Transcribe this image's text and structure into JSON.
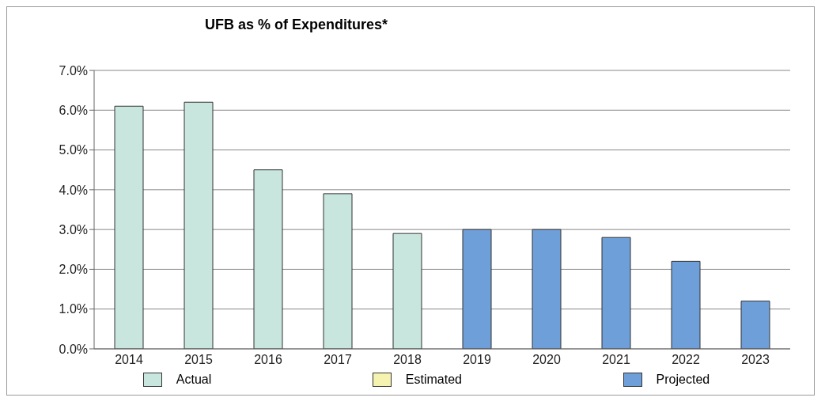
{
  "chart_data": {
    "type": "bar",
    "title": "UFB as % of Expenditures*",
    "categories": [
      "2014",
      "2015",
      "2016",
      "2017",
      "2018",
      "2019",
      "2020",
      "2021",
      "2022",
      "2023"
    ],
    "series": [
      {
        "name": "Actual",
        "color": "#c8e6de",
        "values": [
          6.1,
          6.2,
          4.5,
          3.9,
          2.9,
          null,
          null,
          null,
          null,
          null
        ]
      },
      {
        "name": "Estimated",
        "color": "#f6f3b0",
        "values": [
          null,
          null,
          null,
          null,
          null,
          null,
          null,
          null,
          null,
          null
        ]
      },
      {
        "name": "Projected",
        "color": "#6f9fd8",
        "values": [
          null,
          null,
          null,
          null,
          null,
          3.0,
          3.0,
          2.8,
          2.2,
          1.2
        ]
      }
    ],
    "stacked": true,
    "ylim": [
      0,
      7
    ],
    "yticks": [
      {
        "value": 0,
        "label": "0.0%"
      },
      {
        "value": 1,
        "label": "1.0%"
      },
      {
        "value": 2,
        "label": "2.0%"
      },
      {
        "value": 3,
        "label": "3.0%"
      },
      {
        "value": 4,
        "label": "4.0%"
      },
      {
        "value": 5,
        "label": "5.0%"
      },
      {
        "value": 6,
        "label": "6.0%"
      },
      {
        "value": 7,
        "label": "7.0%"
      }
    ],
    "grid": "y",
    "legend": "bottom"
  }
}
